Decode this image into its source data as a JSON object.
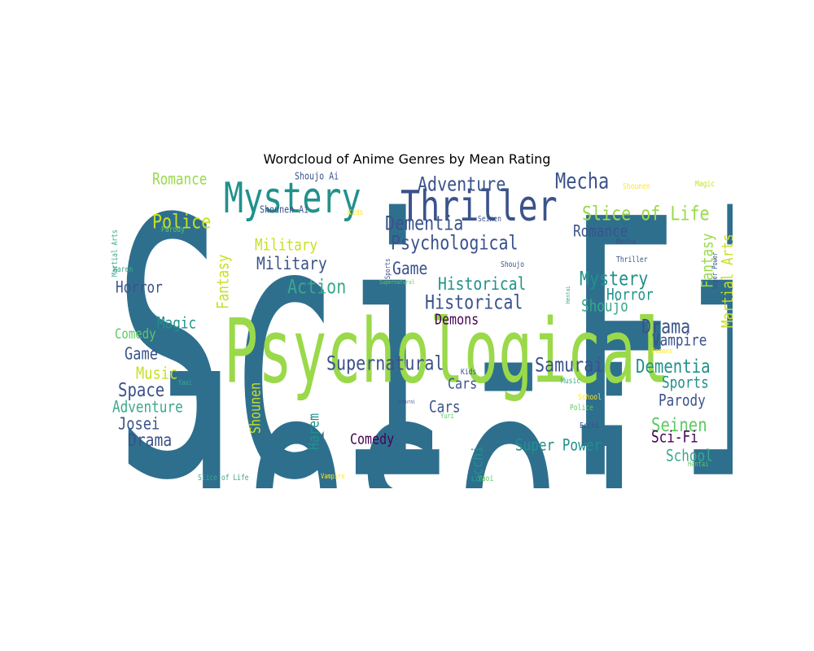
{
  "figure": {
    "title": "Wordcloud of Anime Genres by Mean Rating"
  },
  "chart_data": {
    "type": "wordcloud",
    "title": "Wordcloud of Anime Genres by Mean Rating",
    "palette": [
      "#2e6f8e",
      "#9ad94a",
      "#3b528b",
      "#21918c",
      "#5ec962",
      "#440154",
      "#c8e020",
      "#fde725",
      "#3aa88c"
    ],
    "words": [
      {
        "text": "Sci-Fi",
        "weight": 1.0,
        "color": "#2e6f8e"
      },
      {
        "text": "Josei",
        "weight": 0.98,
        "color": "#2e6f8e"
      },
      {
        "text": "Psychological",
        "weight": 0.55,
        "color": "#9ad94a"
      },
      {
        "text": "Mystery",
        "weight": 0.3,
        "color": "#21918c"
      },
      {
        "text": "Thriller",
        "weight": 0.3,
        "color": "#3b528b"
      },
      {
        "text": "Mecha",
        "weight": 0.2,
        "color": "#3b528b"
      },
      {
        "text": "Adventure",
        "weight": 0.2,
        "color": "#3b528b"
      },
      {
        "text": "Dementia",
        "weight": 0.19,
        "color": "#3b528b"
      },
      {
        "text": "Psychological",
        "weight": 0.19,
        "color": "#3b528b"
      },
      {
        "text": "Slice of Life",
        "weight": 0.19,
        "color": "#9ad94a"
      },
      {
        "text": "Romance",
        "weight": 0.15,
        "color": "#9ad94a"
      },
      {
        "text": "Police",
        "weight": 0.18,
        "color": "#c8e020"
      },
      {
        "text": "Military",
        "weight": 0.15,
        "color": "#c8e020"
      },
      {
        "text": "Military",
        "weight": 0.18,
        "color": "#3b528b"
      },
      {
        "text": "Action",
        "weight": 0.19,
        "color": "#3aa88c"
      },
      {
        "text": "Horror",
        "weight": 0.15,
        "color": "#3b528b"
      },
      {
        "text": "Fantasy",
        "weight": 0.15,
        "color": "#c8e020"
      },
      {
        "text": "Game",
        "weight": 0.17,
        "color": "#3b528b"
      },
      {
        "text": "Historical",
        "weight": 0.18,
        "color": "#21918c"
      },
      {
        "text": "Historical",
        "weight": 0.19,
        "color": "#3b528b"
      },
      {
        "text": "Mystery",
        "weight": 0.19,
        "color": "#21918c"
      },
      {
        "text": "Horror",
        "weight": 0.15,
        "color": "#21918c"
      },
      {
        "text": "Shoujo",
        "weight": 0.15,
        "color": "#3aa88c"
      },
      {
        "text": "Romance",
        "weight": 0.15,
        "color": "#3b528b"
      },
      {
        "text": "Fantasy",
        "weight": 0.15,
        "color": "#9ad94a"
      },
      {
        "text": "Martial Arts",
        "weight": 0.15,
        "color": "#c8e020"
      },
      {
        "text": "Magic",
        "weight": 0.15,
        "color": "#21918c"
      },
      {
        "text": "Comedy",
        "weight": 0.14,
        "color": "#5ec962"
      },
      {
        "text": "Demons",
        "weight": 0.15,
        "color": "#440154"
      },
      {
        "text": "Drama",
        "weight": 0.19,
        "color": "#3b528b"
      },
      {
        "text": "Vampire",
        "weight": 0.15,
        "color": "#3b528b"
      },
      {
        "text": "Game",
        "weight": 0.17,
        "color": "#3b528b"
      },
      {
        "text": "Music",
        "weight": 0.17,
        "color": "#c8e020"
      },
      {
        "text": "Supernatural",
        "weight": 0.19,
        "color": "#3b528b"
      },
      {
        "text": "Samurai",
        "weight": 0.19,
        "color": "#3b528b"
      },
      {
        "text": "Dementia",
        "weight": 0.19,
        "color": "#21918c"
      },
      {
        "text": "Space",
        "weight": 0.19,
        "color": "#3b528b"
      },
      {
        "text": "Sports",
        "weight": 0.16,
        "color": "#21918c"
      },
      {
        "text": "Adventure",
        "weight": 0.15,
        "color": "#3aa88c"
      },
      {
        "text": "Cars",
        "weight": 0.15,
        "color": "#3b528b"
      },
      {
        "text": "Parody",
        "weight": 0.16,
        "color": "#3b528b"
      },
      {
        "text": "Josei",
        "weight": 0.17,
        "color": "#3b528b"
      },
      {
        "text": "Cars",
        "weight": 0.16,
        "color": "#3b528b"
      },
      {
        "text": "Seinen",
        "weight": 0.19,
        "color": "#5ec962"
      },
      {
        "text": "Drama",
        "weight": 0.18,
        "color": "#3b528b"
      },
      {
        "text": "Comedy",
        "weight": 0.15,
        "color": "#440154"
      },
      {
        "text": "Super Power",
        "weight": 0.16,
        "color": "#21918c"
      },
      {
        "text": "Sci-Fi",
        "weight": 0.16,
        "color": "#440154"
      },
      {
        "text": "School",
        "weight": 0.16,
        "color": "#3aa88c"
      },
      {
        "text": "Harem",
        "weight": 0.15,
        "color": "#21918c"
      },
      {
        "text": "Shounen",
        "weight": 0.15,
        "color": "#c8e020"
      },
      {
        "text": "Ecchi",
        "weight": 0.15,
        "color": "#21918c"
      },
      {
        "text": "Shoujo Ai",
        "weight": 0.1,
        "color": "#3b528b"
      },
      {
        "text": "Shounen Ai",
        "weight": 0.1,
        "color": "#3b528b"
      },
      {
        "text": "Kids",
        "weight": 0.08,
        "color": "#fde725"
      },
      {
        "text": "Seinen",
        "weight": 0.08,
        "color": "#3b528b"
      },
      {
        "text": "Shounen",
        "weight": 0.08,
        "color": "#fde725"
      },
      {
        "text": "Magic",
        "weight": 0.08,
        "color": "#c8e020"
      },
      {
        "text": "Mecha",
        "weight": 0.08,
        "color": "#3b528b"
      },
      {
        "text": "Thriller",
        "weight": 0.08,
        "color": "#3b528b"
      },
      {
        "text": "Shoujo",
        "weight": 0.08,
        "color": "#3b528b"
      },
      {
        "text": "Sports",
        "weight": 0.07,
        "color": "#3b528b"
      },
      {
        "text": "Supernatural",
        "weight": 0.06,
        "color": "#5ec962"
      },
      {
        "text": "Super Power",
        "weight": 0.07,
        "color": "#3b528b"
      },
      {
        "text": "Hentai",
        "weight": 0.06,
        "color": "#3aa88c"
      },
      {
        "text": "Parody",
        "weight": 0.08,
        "color": "#5ec962"
      },
      {
        "text": "Martial Arts",
        "weight": 0.08,
        "color": "#3aa88c"
      },
      {
        "text": "Harem",
        "weight": 0.08,
        "color": "#3aa88c"
      },
      {
        "text": "Yaoi",
        "weight": 0.07,
        "color": "#3aa88c"
      },
      {
        "text": "Demons",
        "weight": 0.07,
        "color": "#fde725"
      },
      {
        "text": "Kids",
        "weight": 0.08,
        "color": "#3b528b"
      },
      {
        "text": "Music",
        "weight": 0.08,
        "color": "#3aa88c"
      },
      {
        "text": "School",
        "weight": 0.08,
        "color": "#fde725"
      },
      {
        "text": "Police",
        "weight": 0.08,
        "color": "#5ec962"
      },
      {
        "text": "Samurai",
        "weight": 0.05,
        "color": "#3b528b"
      },
      {
        "text": "Yuri",
        "weight": 0.07,
        "color": "#5ec962"
      },
      {
        "text": "Ecchi",
        "weight": 0.08,
        "color": "#3b528b"
      },
      {
        "text": "Hentai",
        "weight": 0.07,
        "color": "#5ec962"
      },
      {
        "text": "Slice of Life",
        "weight": 0.08,
        "color": "#3aa88c"
      },
      {
        "text": "Vampire",
        "weight": 0.07,
        "color": "#fde725"
      },
      {
        "text": "Yaoi",
        "weight": 0.08,
        "color": "#5ec962"
      }
    ]
  }
}
